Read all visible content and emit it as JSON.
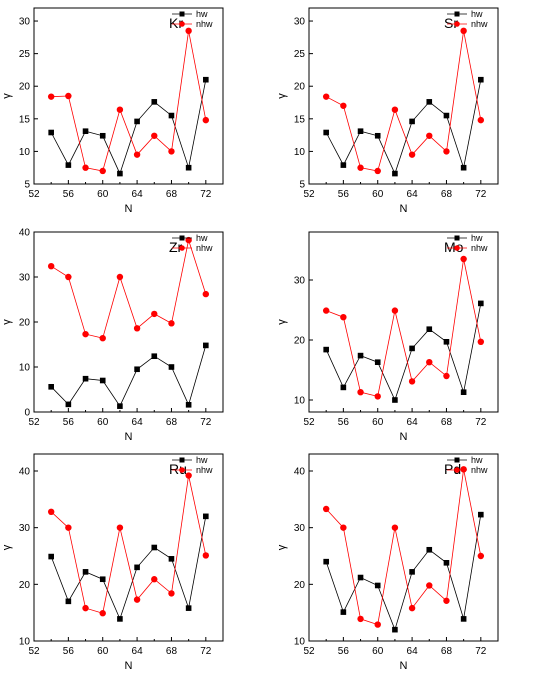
{
  "chart_data": [
    {
      "type": "line",
      "title": "Kr",
      "xlabel": "N",
      "ylabel": "γ",
      "xlim": [
        52,
        74
      ],
      "ylim": [
        5,
        32
      ],
      "xticks": [
        52,
        56,
        60,
        64,
        68,
        72
      ],
      "yticks": [
        5,
        10,
        15,
        20,
        25,
        30
      ],
      "x": [
        54,
        56,
        58,
        60,
        62,
        64,
        66,
        68,
        70,
        72
      ],
      "legend_position": "top-right",
      "series": [
        {
          "name": "hw",
          "marker": "square",
          "color": "#000000",
          "values": [
            12.9,
            7.9,
            13.1,
            12.4,
            6.6,
            14.6,
            17.6,
            15.5,
            7.5,
            21.0
          ]
        },
        {
          "name": "nhw",
          "marker": "circle",
          "color": "#ff0000",
          "values": [
            18.4,
            18.5,
            7.5,
            7.0,
            16.4,
            9.5,
            12.4,
            10.0,
            28.5,
            14.8
          ]
        }
      ]
    },
    {
      "type": "line",
      "title": "Sr",
      "xlabel": "N",
      "ylabel": "γ",
      "xlim": [
        52,
        74
      ],
      "ylim": [
        5,
        32
      ],
      "xticks": [
        52,
        56,
        60,
        64,
        68,
        72
      ],
      "yticks": [
        5,
        10,
        15,
        20,
        25,
        30
      ],
      "x": [
        54,
        56,
        58,
        60,
        62,
        64,
        66,
        68,
        70,
        72
      ],
      "legend_position": "top-right",
      "series": [
        {
          "name": "hw",
          "marker": "square",
          "color": "#000000",
          "values": [
            12.9,
            7.9,
            13.1,
            12.4,
            6.6,
            14.6,
            17.6,
            15.5,
            7.5,
            21.0
          ]
        },
        {
          "name": "nhw",
          "marker": "circle",
          "color": "#ff0000",
          "values": [
            18.4,
            17.0,
            7.5,
            7.0,
            16.4,
            9.5,
            12.4,
            10.0,
            28.5,
            14.8
          ]
        }
      ]
    },
    {
      "type": "line",
      "title": "Zr",
      "xlabel": "N",
      "ylabel": "γ",
      "xlim": [
        52,
        74
      ],
      "ylim": [
        0,
        40
      ],
      "xticks": [
        52,
        56,
        60,
        64,
        68,
        72
      ],
      "yticks": [
        0,
        10,
        20,
        30,
        40
      ],
      "x": [
        54,
        56,
        58,
        60,
        62,
        64,
        66,
        68,
        70,
        72
      ],
      "legend_position": "top-right",
      "series": [
        {
          "name": "hw",
          "marker": "square",
          "color": "#000000",
          "values": [
            5.6,
            1.7,
            7.4,
            7.0,
            1.3,
            9.5,
            12.4,
            10.0,
            1.6,
            14.8
          ]
        },
        {
          "name": "nhw",
          "marker": "circle",
          "color": "#ff0000",
          "values": [
            32.4,
            30.0,
            17.3,
            16.4,
            30.0,
            18.6,
            21.8,
            19.7,
            38.2,
            26.2
          ]
        }
      ]
    },
    {
      "type": "line",
      "title": "Mo",
      "xlabel": "N",
      "ylabel": "γ",
      "xlim": [
        52,
        74
      ],
      "ylim": [
        8,
        38
      ],
      "xticks": [
        52,
        56,
        60,
        64,
        68,
        72
      ],
      "yticks": [
        10,
        20,
        30
      ],
      "x": [
        54,
        56,
        58,
        60,
        62,
        64,
        66,
        68,
        70,
        72
      ],
      "legend_position": "top-right",
      "series": [
        {
          "name": "hw",
          "marker": "square",
          "color": "#000000",
          "values": [
            18.4,
            12.1,
            17.4,
            16.3,
            10.0,
            18.6,
            21.8,
            19.7,
            11.3,
            26.1
          ]
        },
        {
          "name": "nhw",
          "marker": "circle",
          "color": "#ff0000",
          "values": [
            24.9,
            23.8,
            11.3,
            10.6,
            24.9,
            13.1,
            16.3,
            14.0,
            33.5,
            19.7
          ]
        }
      ]
    },
    {
      "type": "line",
      "title": "Ru",
      "xlabel": "N",
      "ylabel": "γ",
      "xlim": [
        52,
        74
      ],
      "ylim": [
        10,
        43
      ],
      "xticks": [
        52,
        56,
        60,
        64,
        68,
        72
      ],
      "yticks": [
        10,
        20,
        30,
        40
      ],
      "x": [
        54,
        56,
        58,
        60,
        62,
        64,
        66,
        68,
        70,
        72
      ],
      "legend_position": "top-right",
      "series": [
        {
          "name": "hw",
          "marker": "square",
          "color": "#000000",
          "values": [
            24.9,
            17.0,
            22.2,
            20.9,
            13.9,
            23.0,
            26.5,
            24.5,
            15.8,
            32.0
          ]
        },
        {
          "name": "nhw",
          "marker": "circle",
          "color": "#ff0000",
          "values": [
            32.8,
            30.0,
            15.8,
            14.9,
            30.0,
            17.3,
            20.9,
            18.4,
            39.2,
            25.1
          ]
        }
      ]
    },
    {
      "type": "line",
      "title": "Pd",
      "xlabel": "N",
      "ylabel": "γ",
      "xlim": [
        52,
        74
      ],
      "ylim": [
        10,
        43
      ],
      "xticks": [
        52,
        56,
        60,
        64,
        68,
        72
      ],
      "yticks": [
        10,
        20,
        30,
        40
      ],
      "x": [
        54,
        56,
        58,
        60,
        62,
        64,
        66,
        68,
        70,
        72
      ],
      "legend_position": "top-right",
      "series": [
        {
          "name": "hw",
          "marker": "square",
          "color": "#000000",
          "values": [
            24.0,
            15.1,
            21.2,
            19.8,
            12.0,
            22.2,
            26.1,
            23.8,
            13.9,
            32.3
          ]
        },
        {
          "name": "nhw",
          "marker": "circle",
          "color": "#ff0000",
          "values": [
            33.3,
            30.0,
            13.9,
            12.9,
            30.0,
            15.8,
            19.8,
            17.1,
            40.3,
            25.0
          ]
        }
      ]
    }
  ]
}
